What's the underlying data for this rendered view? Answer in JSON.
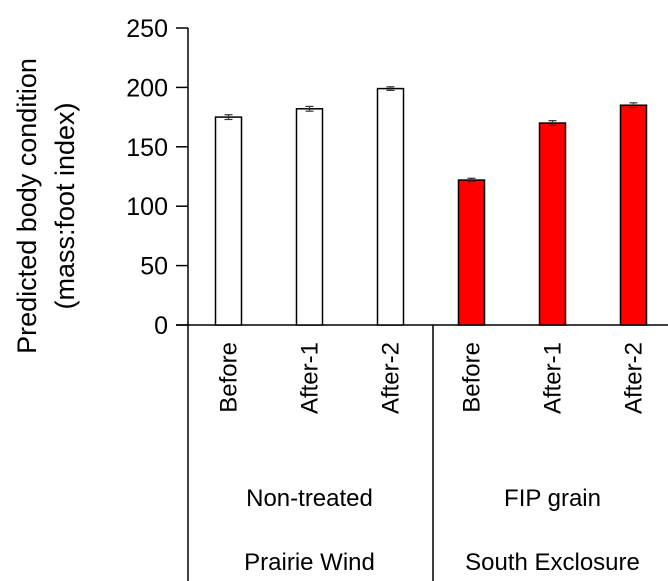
{
  "chart_data": {
    "type": "bar",
    "ylabel_line1": "Predicted body condition",
    "ylabel_line2": "(mass:foot index)",
    "ylim": [
      0,
      250
    ],
    "yticks": [
      0,
      50,
      100,
      150,
      200,
      250
    ],
    "grid": false,
    "bars": [
      {
        "category": "Before",
        "treatment": "Non-treated",
        "site": "Prairie Wind",
        "value": 175,
        "error": 2,
        "fill": "#ffffff"
      },
      {
        "category": "After-1",
        "treatment": "Non-treated",
        "site": "Prairie Wind",
        "value": 182,
        "error": 2,
        "fill": "#ffffff"
      },
      {
        "category": "After-2",
        "treatment": "Non-treated",
        "site": "Prairie Wind",
        "value": 199,
        "error": 1.5,
        "fill": "#ffffff"
      },
      {
        "category": "Before",
        "treatment": "FIP grain",
        "site": "South Exclosure",
        "value": 122,
        "error": 1.5,
        "fill": "#ff0000"
      },
      {
        "category": "After-1",
        "treatment": "FIP grain",
        "site": "South Exclosure",
        "value": 170,
        "error": 2,
        "fill": "#ff0000"
      },
      {
        "category": "After-2",
        "treatment": "FIP grain",
        "site": "South Exclosure",
        "value": 185,
        "error": 2,
        "fill": "#ff0000"
      }
    ],
    "groups": [
      {
        "treatment": "Non-treated",
        "site": "Prairie Wind"
      },
      {
        "treatment": "FIP grain",
        "site": "South Exclosure"
      }
    ]
  }
}
